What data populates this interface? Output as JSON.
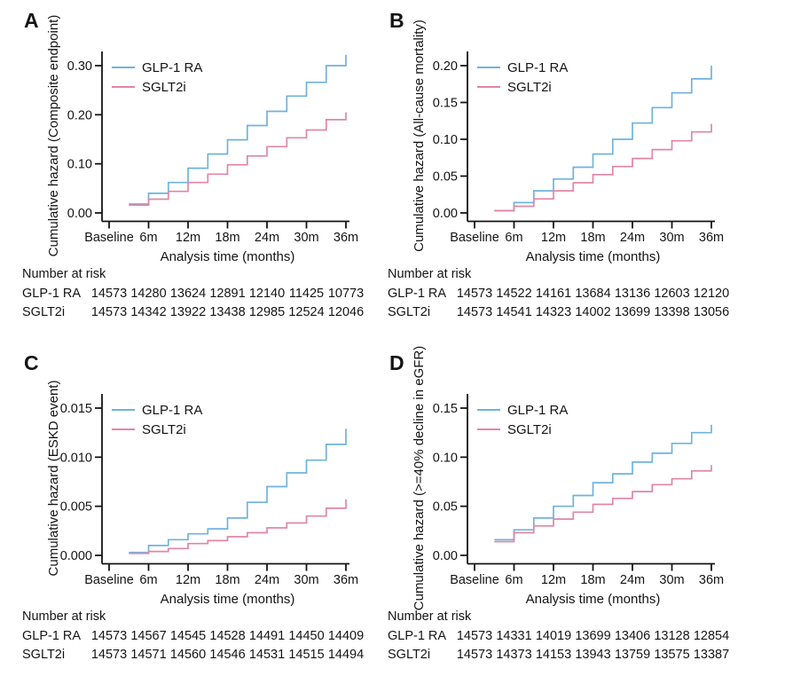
{
  "colors": {
    "glp1ra": "#6FB3DE",
    "sglt2i": "#E286A3",
    "axis": "#141414",
    "text": "#141414",
    "background": "#FFFFFF"
  },
  "chart_data": [
    {
      "type": "line",
      "step": true,
      "panel_label": "A",
      "ylabel": "Cumulative hazard (Composite endpoint)",
      "xlabel": "Analysis time (months)",
      "xtick_labels": [
        "Baseline",
        "6m",
        "12m",
        "18m",
        "24m",
        "30m",
        "36m"
      ],
      "x_months": [
        3,
        6,
        9,
        12,
        15,
        18,
        21,
        24,
        27,
        30,
        33,
        36
      ],
      "yticks": [
        0,
        0.1,
        0.2,
        0.3
      ],
      "ytick_labels": [
        "0.00",
        "0.10",
        "0.20",
        "0.30"
      ],
      "ylim": [
        0,
        0.33
      ],
      "legend_position": "top-left",
      "grid": false,
      "series": [
        {
          "name": "GLP-1 RA",
          "color_key": "glp1ra",
          "values": [
            0.018,
            0.04,
            0.062,
            0.091,
            0.12,
            0.149,
            0.178,
            0.207,
            0.238,
            0.266,
            0.3,
            0.322
          ]
        },
        {
          "name": "SGLT2i",
          "color_key": "sglt2i",
          "values": [
            0.016,
            0.028,
            0.044,
            0.062,
            0.079,
            0.098,
            0.116,
            0.135,
            0.153,
            0.169,
            0.19,
            0.205
          ]
        }
      ],
      "number_at_risk": {
        "title": "Number at risk",
        "time_labels": [
          "Baseline",
          "6m",
          "12m",
          "18m",
          "24m",
          "30m",
          "36m"
        ],
        "rows": [
          {
            "label": "GLP-1 RA",
            "values": [
              "14573",
              "14280",
              "13624",
              "12891",
              "12140",
              "11425",
              "10773"
            ]
          },
          {
            "label": "SGLT2i",
            "values": [
              "14573",
              "14342",
              "13922",
              "13438",
              "12985",
              "12524",
              "12046"
            ]
          }
        ]
      }
    },
    {
      "type": "line",
      "step": true,
      "panel_label": "B",
      "ylabel": "Cumulative hazard (All-cause mortality)",
      "xlabel": "Analysis time (months)",
      "xtick_labels": [
        "Baseline",
        "6m",
        "12m",
        "18m",
        "24m",
        "30m",
        "36m"
      ],
      "x_months": [
        3,
        6,
        9,
        12,
        15,
        18,
        21,
        24,
        27,
        30,
        33,
        36
      ],
      "yticks": [
        0,
        0.05,
        0.1,
        0.15,
        0.2
      ],
      "ytick_labels": [
        "0.00",
        "0.05",
        "0.10",
        "0.15",
        "0.20"
      ],
      "ylim": [
        0,
        0.205
      ],
      "legend_position": "top-left",
      "grid": false,
      "series": [
        {
          "name": "GLP-1 RA",
          "color_key": "glp1ra",
          "values": [
            0.003,
            0.014,
            0.03,
            0.046,
            0.062,
            0.08,
            0.1,
            0.122,
            0.143,
            0.163,
            0.182,
            0.2
          ]
        },
        {
          "name": "SGLT2i",
          "color_key": "sglt2i",
          "values": [
            0.003,
            0.009,
            0.019,
            0.03,
            0.041,
            0.052,
            0.063,
            0.074,
            0.086,
            0.098,
            0.11,
            0.121
          ]
        }
      ],
      "number_at_risk": {
        "title": "Number at risk",
        "time_labels": [
          "Baseline",
          "6m",
          "12m",
          "18m",
          "24m",
          "30m",
          "36m"
        ],
        "rows": [
          {
            "label": "GLP-1 RA",
            "values": [
              "14573",
              "14522",
              "14161",
              "13684",
              "13136",
              "12603",
              "12120"
            ]
          },
          {
            "label": "SGLT2i",
            "values": [
              "14573",
              "14541",
              "14323",
              "14002",
              "13699",
              "13398",
              "13056"
            ]
          }
        ]
      }
    },
    {
      "type": "line",
      "step": true,
      "panel_label": "C",
      "ylabel": "Cumulative hazard (ESKD event)",
      "xlabel": "Analysis time (months)",
      "xtick_labels": [
        "Baseline",
        "6m",
        "12m",
        "18m",
        "24m",
        "30m",
        "36m"
      ],
      "x_months": [
        3,
        6,
        9,
        12,
        15,
        18,
        21,
        24,
        27,
        30,
        33,
        36
      ],
      "yticks": [
        0,
        0.005,
        0.01,
        0.015
      ],
      "ytick_labels": [
        "0.000",
        "0.005",
        "0.010",
        "0.015"
      ],
      "ylim": [
        0,
        0.0155
      ],
      "legend_position": "top-left",
      "grid": false,
      "series": [
        {
          "name": "GLP-1 RA",
          "color_key": "glp1ra",
          "values": [
            0.0003,
            0.001,
            0.0016,
            0.0022,
            0.0027,
            0.0038,
            0.0054,
            0.007,
            0.0084,
            0.0097,
            0.0113,
            0.0129
          ]
        },
        {
          "name": "SGLT2i",
          "color_key": "sglt2i",
          "values": [
            0.0002,
            0.0004,
            0.0007,
            0.0012,
            0.0015,
            0.0019,
            0.0023,
            0.0028,
            0.0033,
            0.004,
            0.0048,
            0.0057
          ]
        }
      ],
      "number_at_risk": {
        "title": "Number at risk",
        "time_labels": [
          "Baseline",
          "6m",
          "12m",
          "18m",
          "24m",
          "30m",
          "36m"
        ],
        "rows": [
          {
            "label": "GLP-1 RA",
            "values": [
              "14573",
              "14567",
              "14545",
              "14528",
              "14491",
              "14450",
              "14409"
            ]
          },
          {
            "label": "SGLT2i",
            "values": [
              "14573",
              "14571",
              "14560",
              "14546",
              "14531",
              "14515",
              "14494"
            ]
          }
        ]
      }
    },
    {
      "type": "line",
      "step": true,
      "panel_label": "D",
      "ylabel": "Cumulative hazard (>=40% decline in eGFR)",
      "xlabel": "Analysis time (months)",
      "xtick_labels": [
        "Baseline",
        "6m",
        "12m",
        "18m",
        "24m",
        "30m",
        "36m"
      ],
      "x_months": [
        3,
        6,
        9,
        12,
        15,
        18,
        21,
        24,
        27,
        30,
        33,
        36
      ],
      "yticks": [
        0,
        0.05,
        0.1,
        0.15
      ],
      "ytick_labels": [
        "0.00",
        "0.05",
        "0.10",
        "0.15"
      ],
      "ylim": [
        0,
        0.155
      ],
      "legend_position": "top-left",
      "grid": false,
      "series": [
        {
          "name": "GLP-1 RA",
          "color_key": "glp1ra",
          "values": [
            0.016,
            0.026,
            0.038,
            0.05,
            0.061,
            0.074,
            0.083,
            0.095,
            0.104,
            0.114,
            0.125,
            0.133
          ]
        },
        {
          "name": "SGLT2i",
          "color_key": "sglt2i",
          "values": [
            0.014,
            0.023,
            0.03,
            0.037,
            0.044,
            0.052,
            0.058,
            0.065,
            0.072,
            0.078,
            0.086,
            0.092
          ]
        }
      ],
      "number_at_risk": {
        "title": "Number at risk",
        "time_labels": [
          "Baseline",
          "6m",
          "12m",
          "18m",
          "24m",
          "30m",
          "36m"
        ],
        "rows": [
          {
            "label": "GLP-1 RA",
            "values": [
              "14573",
              "14331",
              "14019",
              "13699",
              "13406",
              "13128",
              "12854"
            ]
          },
          {
            "label": "SGLT2i",
            "values": [
              "14573",
              "14373",
              "14153",
              "13943",
              "13759",
              "13575",
              "13387"
            ]
          }
        ]
      }
    }
  ]
}
